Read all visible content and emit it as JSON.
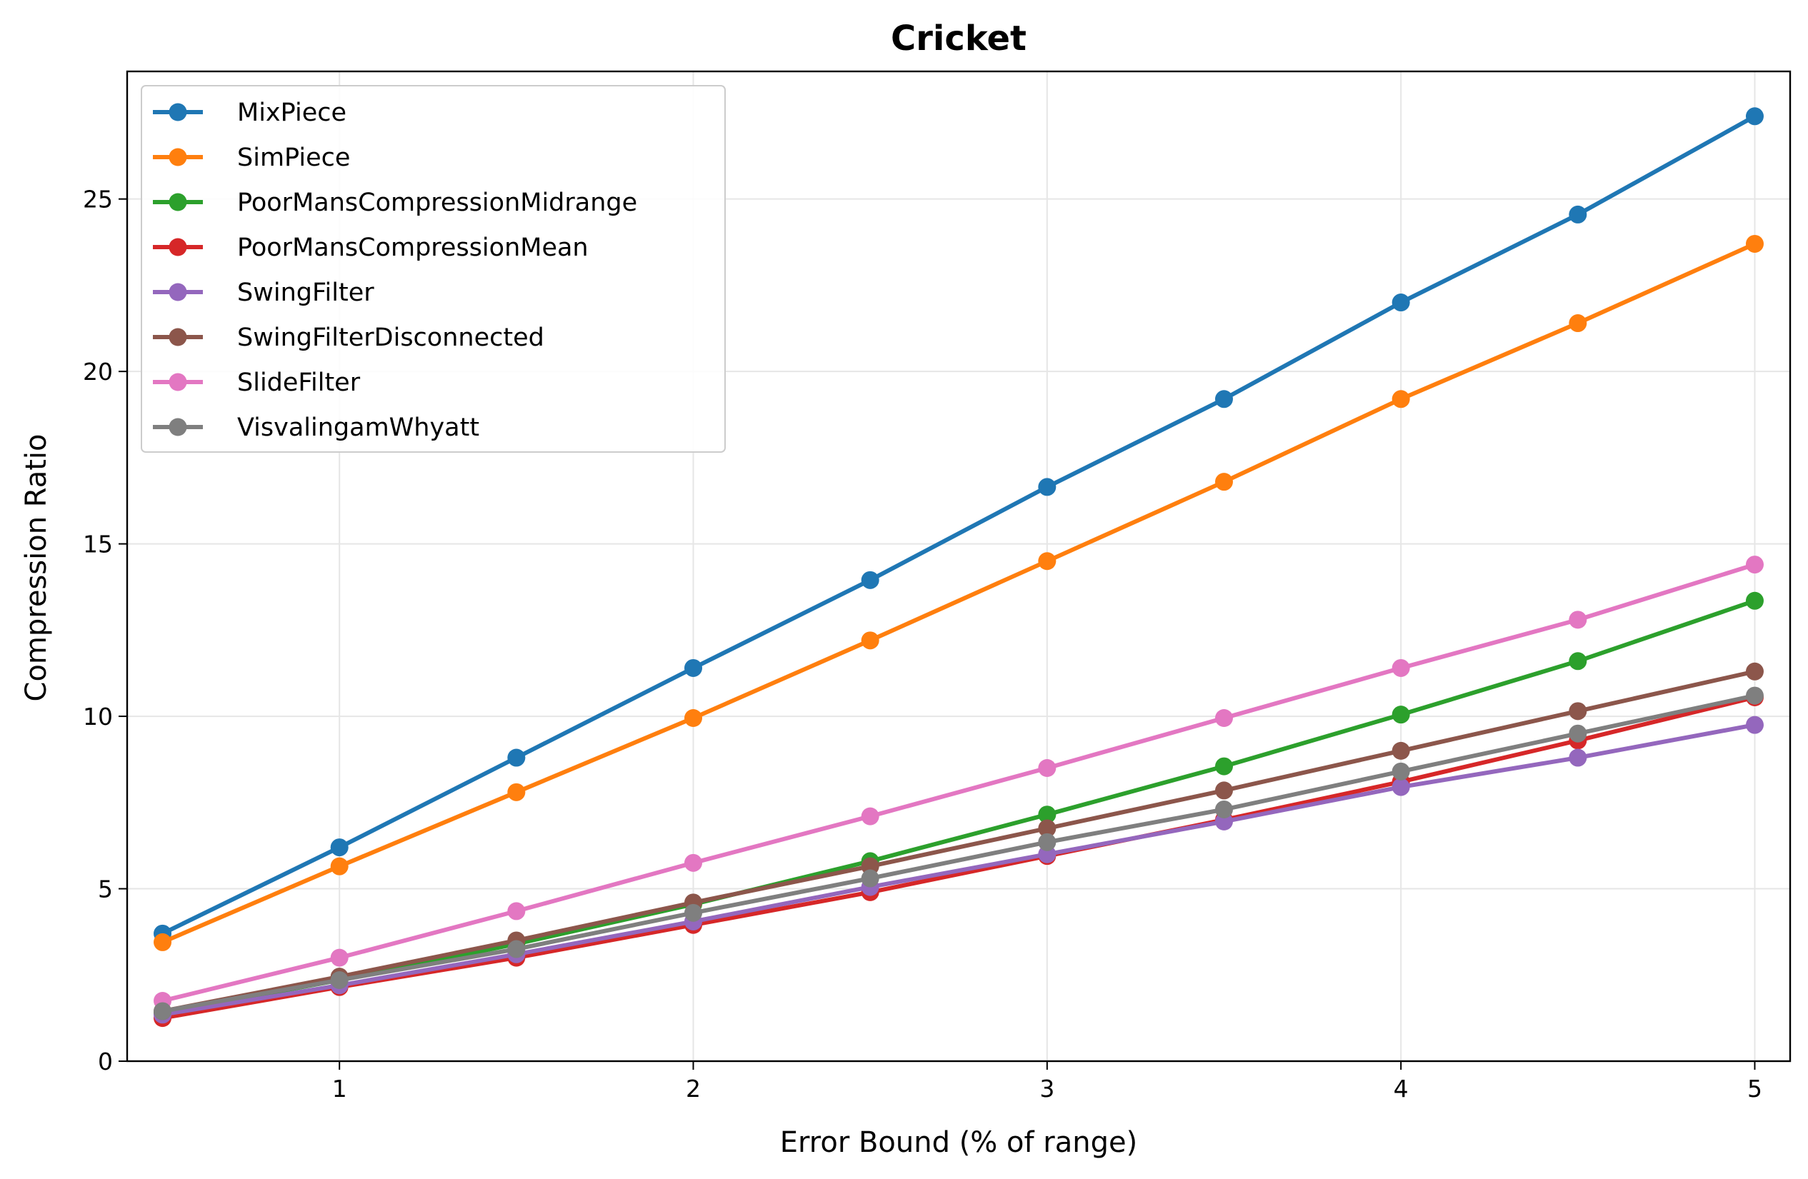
{
  "chart_data": {
    "type": "line",
    "title": "Cricket",
    "xlabel": "Error Bound (% of range)",
    "ylabel": "Compression Ratio",
    "x": [
      0.5,
      1.0,
      1.5,
      2.0,
      2.5,
      3.0,
      3.5,
      4.0,
      4.5,
      5.0
    ],
    "xlim": [
      0.4,
      5.1
    ],
    "ylim": [
      0,
      28.7
    ],
    "xticks": [
      1,
      2,
      3,
      4,
      5
    ],
    "yticks": [
      0,
      5,
      10,
      15,
      20,
      25
    ],
    "grid": true,
    "legend_position": "top-left",
    "series": [
      {
        "name": "MixPiece",
        "color": "#1f77b4",
        "values": [
          3.7,
          6.2,
          8.8,
          11.4,
          13.95,
          16.65,
          19.2,
          22.0,
          24.55,
          27.4
        ]
      },
      {
        "name": "SimPiece",
        "color": "#ff7f0e",
        "values": [
          3.45,
          5.65,
          7.8,
          9.95,
          12.2,
          14.5,
          16.8,
          19.2,
          21.4,
          23.7
        ]
      },
      {
        "name": "PoorMansCompressionMidrange",
        "color": "#2ca02c",
        "values": [
          1.4,
          2.35,
          3.4,
          4.55,
          5.8,
          7.15,
          8.55,
          10.05,
          11.6,
          13.35
        ]
      },
      {
        "name": "PoorMansCompressionMean",
        "color": "#d62728",
        "values": [
          1.25,
          2.15,
          3.0,
          3.95,
          4.9,
          5.95,
          7.0,
          8.1,
          9.3,
          10.55
        ]
      },
      {
        "name": "SwingFilter",
        "color": "#9467bd",
        "values": [
          1.35,
          2.2,
          3.1,
          4.05,
          5.05,
          6.0,
          6.95,
          7.95,
          8.8,
          9.75
        ]
      },
      {
        "name": "SwingFilterDisconnected",
        "color": "#8c564b",
        "values": [
          1.45,
          2.45,
          3.5,
          4.6,
          5.65,
          6.75,
          7.85,
          9.0,
          10.15,
          11.3
        ]
      },
      {
        "name": "SlideFilter",
        "color": "#e377c2",
        "values": [
          1.75,
          3.0,
          4.35,
          5.75,
          7.1,
          8.5,
          9.95,
          11.4,
          12.8,
          14.4
        ]
      },
      {
        "name": "VisvalingamWhyatt",
        "color": "#7f7f7f",
        "values": [
          1.45,
          2.35,
          3.25,
          4.3,
          5.3,
          6.35,
          7.3,
          8.4,
          9.5,
          10.6
        ]
      }
    ]
  }
}
